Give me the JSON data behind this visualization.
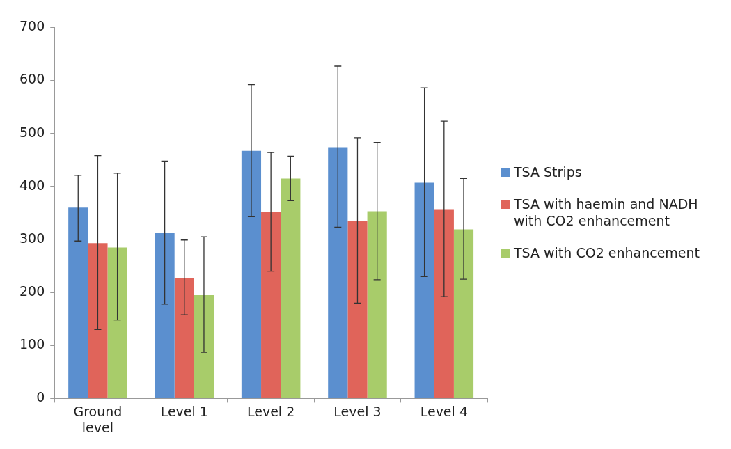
{
  "chart_data": {
    "type": "bar",
    "categories": [
      "Ground level",
      "Level 1",
      "Level 2",
      "Level 3",
      "Level 4"
    ],
    "series": [
      {
        "name": "TSA Strips",
        "color": "#5b8fcf",
        "values": [
          360,
          312,
          467,
          474,
          407
        ],
        "errors": [
          [
            297,
            421
          ],
          [
            178,
            448
          ],
          [
            343,
            592
          ],
          [
            323,
            627
          ],
          [
            230,
            586
          ]
        ]
      },
      {
        "name": "TSA with haemin and NADH with CO2 enhancement",
        "color": "#e0645a",
        "values": [
          293,
          227,
          352,
          335,
          357
        ],
        "errors": [
          [
            130,
            458
          ],
          [
            158,
            299
          ],
          [
            240,
            464
          ],
          [
            180,
            492
          ],
          [
            192,
            523
          ]
        ]
      },
      {
        "name": "TSA with CO2 enhancement",
        "color": "#a8cc6a",
        "values": [
          285,
          195,
          415,
          353,
          319
        ],
        "errors": [
          [
            148,
            425
          ],
          [
            87,
            305
          ],
          [
            373,
            457
          ],
          [
            224,
            483
          ],
          [
            225,
            415
          ]
        ]
      }
    ],
    "ylim": [
      0,
      700
    ],
    "yticks": [
      0,
      100,
      200,
      300,
      400,
      500,
      600,
      700
    ],
    "grid": false,
    "legend": "right"
  }
}
